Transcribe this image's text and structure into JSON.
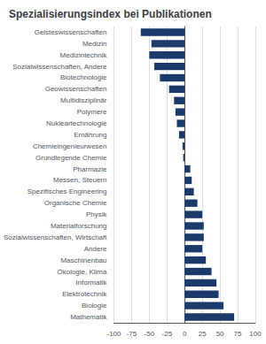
{
  "chart_data": {
    "type": "bar",
    "orientation": "horizontal",
    "title": "Spezialisierungsindex bei Publikationen",
    "categories": [
      "Geisteswissenschaften",
      "Medizin",
      "Medizintechnik",
      "Sozialwissenschaften, Andere",
      "Biotechnologie",
      "Geowissenschaften",
      "Multidisziplinär",
      "Polymere",
      "Nukleartechnologie",
      "Ernährung",
      "Chemieingenieurwesen",
      "Grundlegende Chemie",
      "Pharmazie",
      "Messen, Steuern",
      "Spezifisches Engineering",
      "Organische Chemie",
      "Physik",
      "Materialforschung",
      "Sozialwissenschaften, Wirtschaft",
      "Andere",
      "Maschinenbau",
      "Ökologie, Klima",
      "Informatik",
      "Elektrotechnik",
      "Biologie",
      "Mathematik"
    ],
    "values": [
      -62,
      -47,
      -50,
      -43,
      -35,
      -22,
      -15,
      -13,
      -11,
      -8,
      -3,
      -2,
      8,
      10,
      13,
      18,
      25,
      27,
      27,
      25,
      30,
      38,
      45,
      48,
      55,
      70
    ],
    "color": "#1a3a6b",
    "xlim": [
      -100,
      100
    ],
    "xticks": [
      -100,
      -75,
      -50,
      -25,
      0,
      25,
      50,
      75,
      100
    ],
    "grid": true
  }
}
